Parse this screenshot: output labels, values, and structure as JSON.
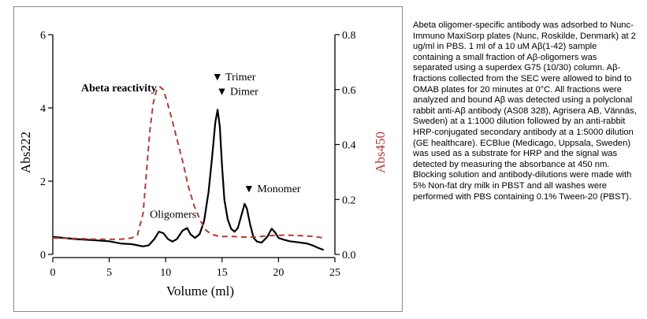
{
  "chart_data": {
    "type": "line",
    "xlabel": "Volume (ml)",
    "ylabel_left": "Abs222",
    "ylabel_right": "Abs450",
    "xlim": [
      0,
      25
    ],
    "ylim_left": [
      0,
      6
    ],
    "ylim_right": [
      0.0,
      0.8
    ],
    "x_ticks": [
      "0",
      "5",
      "10",
      "15",
      "20",
      "25"
    ],
    "y_left_ticks": [
      "0",
      "2",
      "4",
      "6"
    ],
    "y_right_ticks": [
      "0.0",
      "0.2",
      "0.4",
      "0.6",
      "0.8"
    ],
    "series": [
      {
        "axis": "left",
        "color": "#000000",
        "style": "solid",
        "x": [
          0.0,
          1.0,
          2.0,
          3.0,
          4.0,
          5.0,
          6.0,
          7.0,
          8.0,
          8.5,
          9.0,
          9.4,
          9.8,
          10.2,
          10.6,
          11.0,
          11.5,
          11.9,
          12.2,
          12.6,
          13.0,
          13.4,
          13.8,
          14.1,
          14.4,
          14.6,
          14.8,
          15.0,
          15.2,
          15.5,
          15.8,
          16.1,
          16.4,
          16.7,
          17.0,
          17.2,
          17.5,
          17.8,
          18.1,
          18.5,
          19.0,
          19.4,
          19.7,
          20.0,
          20.5,
          21.0,
          21.5,
          22.0,
          22.5,
          23.0,
          23.5,
          24.0
        ],
        "y": [
          0.48,
          0.45,
          0.42,
          0.4,
          0.38,
          0.36,
          0.3,
          0.28,
          0.22,
          0.25,
          0.42,
          0.62,
          0.58,
          0.42,
          0.35,
          0.42,
          0.65,
          0.72,
          0.55,
          0.45,
          0.55,
          0.9,
          1.7,
          2.6,
          3.6,
          3.95,
          3.5,
          2.4,
          1.5,
          0.95,
          0.7,
          0.62,
          0.72,
          1.05,
          1.38,
          1.25,
          0.8,
          0.45,
          0.35,
          0.32,
          0.48,
          0.7,
          0.6,
          0.45,
          0.4,
          0.36,
          0.34,
          0.32,
          0.3,
          0.25,
          0.18,
          0.12
        ]
      },
      {
        "axis": "right",
        "color": "#b23b35",
        "style": "dashed",
        "x": [
          0.0,
          2.0,
          4.0,
          6.0,
          7.0,
          7.5,
          8.0,
          8.3,
          8.6,
          8.9,
          9.2,
          9.5,
          9.8,
          10.1,
          10.5,
          11.0,
          11.5,
          12.0,
          12.5,
          13.0,
          13.5,
          14.0,
          14.5,
          15.0,
          16.0,
          17.0,
          18.0,
          19.0,
          20.0,
          21.0,
          22.0,
          23.0,
          24.0
        ],
        "y": [
          0.06,
          0.058,
          0.055,
          0.055,
          0.06,
          0.07,
          0.15,
          0.3,
          0.45,
          0.55,
          0.6,
          0.61,
          0.6,
          0.56,
          0.5,
          0.42,
          0.34,
          0.25,
          0.18,
          0.13,
          0.09,
          0.075,
          0.068,
          0.065,
          0.065,
          0.063,
          0.063,
          0.068,
          0.07,
          0.07,
          0.068,
          0.066,
          0.06
        ]
      }
    ],
    "annotations": [
      {
        "text": "Abeta reactivity",
        "marker": "",
        "x": 9.2,
        "y_left": 4.45,
        "anchor": "end"
      },
      {
        "text": "Trimer",
        "marker": "▼",
        "x": 14.1,
        "y_left": 4.75,
        "anchor": "start"
      },
      {
        "text": "Dimer",
        "marker": "▼",
        "x": 14.5,
        "y_left": 4.35,
        "anchor": "start"
      },
      {
        "text": "Monomer",
        "marker": "▼",
        "x": 16.9,
        "y_left": 1.7,
        "anchor": "start"
      },
      {
        "text": "Oligomers",
        "marker": "",
        "x": 8.6,
        "y_left": 1.0,
        "anchor": "start"
      }
    ]
  },
  "caption": "Abeta oligomer-specific antibody was adsorbed to Nunc-Immuno MaxiSorp plates (Nunc, Roskilde, Denmark) at 2 ug/ml in PBS. 1 ml of a 10 uM Aβ(1-42) sample containing a small fraction of Aβ-oligomers was separated using a superdex G75 (10/30) column. Aβ-fractions collected from the SEC were allowed to bind to OMAB plates for 20 minutes at 0°C. All fractions were analyzed and bound Aβ was detected using a polyclonal rabbit anti-Aβ antibody (AS08 328), Agrisera AB, Vännäs, Sweden) at a 1:1000 dilution followed by an anti-rabbit HRP-conjugated secondary antibody at a 1:5000 dilution (GE healthcare). ECBlue (Medicago, Uppsala, Sweden) was used as a substrate for HRP and the signal was detected by measuring the absorbance at 450 nm. Blocking solution and antibody-dilutions were made with 5% Non-fat dry milk in PBST and all washes were performed with PBS containing 0.1% Tween-20 (PBST)."
}
